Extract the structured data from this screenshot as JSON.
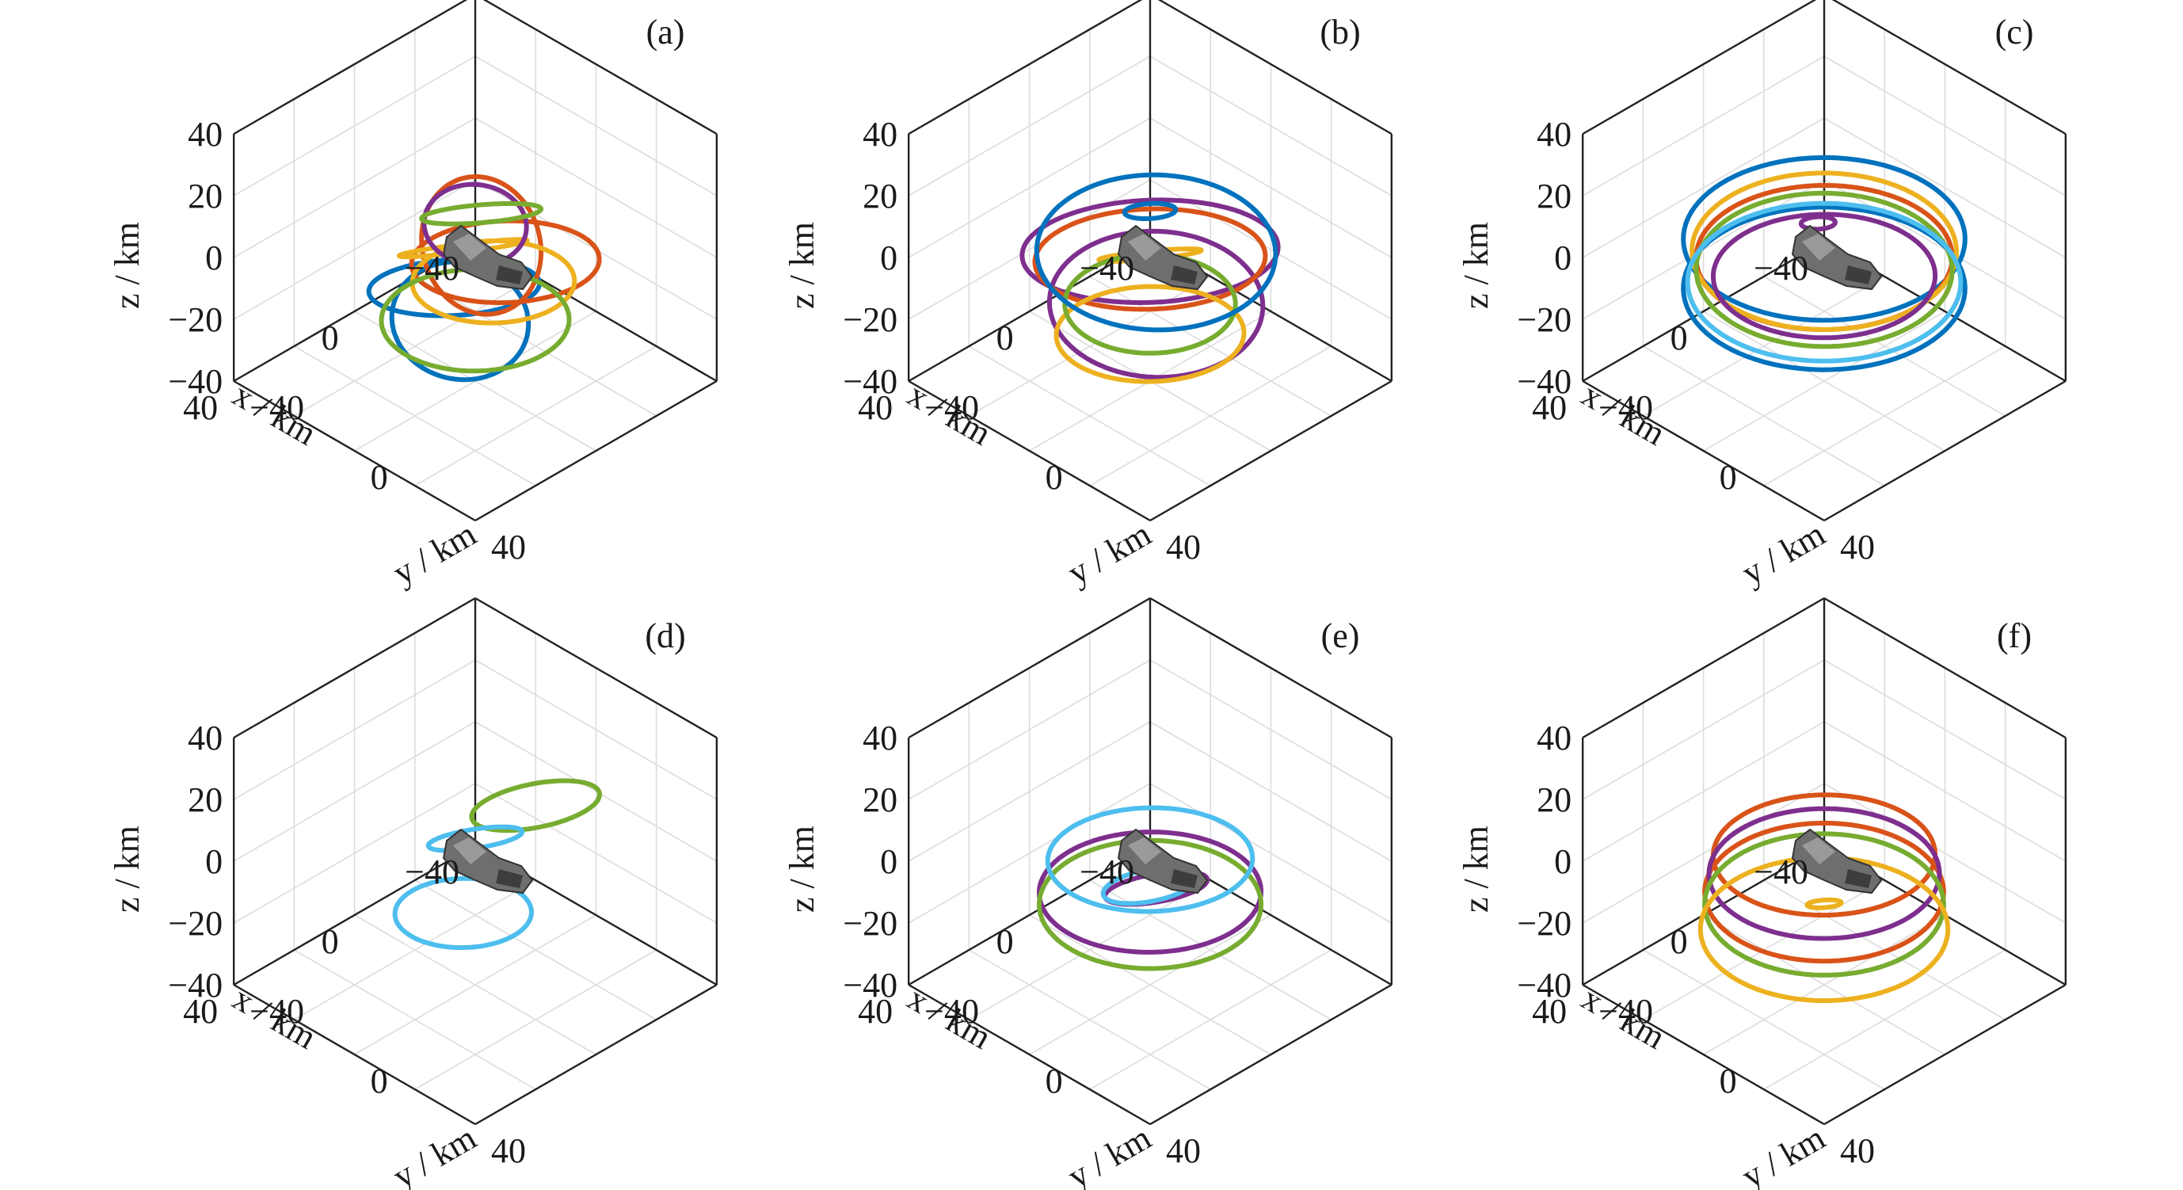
{
  "chart_data": [
    {
      "type": "line3d",
      "panel_label": "(a)",
      "xlabel": "x / km",
      "ylabel": "y / km",
      "zlabel": "z / km",
      "xlim": [
        -40,
        40
      ],
      "ylim": [
        -40,
        40
      ],
      "zlim": [
        -40,
        40
      ],
      "xticks": [
        "−40",
        "0",
        "40"
      ],
      "yticks": [
        "−40",
        "0",
        "40"
      ],
      "zticks": [
        "−40",
        "−20",
        "0",
        "20",
        "40"
      ],
      "grid": true,
      "view": "isometric",
      "has_asteroid_model": true,
      "series": [
        {
          "color": "#0072BD",
          "loops": [
            {
              "cx": 5,
              "cy": -2,
              "cz": -8,
              "r": 20,
              "tilt": 0.35
            },
            {
              "cx": 10,
              "cy": 5,
              "cz": -12,
              "r": 16,
              "tilt": -0.4
            }
          ]
        },
        {
          "color": "#D95319",
          "loops": [
            {
              "cx": -2,
              "cy": 8,
              "cz": 2,
              "r": 22,
              "tilt": 0.2
            },
            {
              "cx": -8,
              "cy": -6,
              "cz": -4,
              "r": 14,
              "tilt": -0.8
            }
          ]
        },
        {
          "color": "#EDB120",
          "loops": [
            {
              "cx": -6,
              "cy": -10,
              "cz": -6,
              "r": 15,
              "tilt": 0.9
            },
            {
              "cx": 4,
              "cy": 10,
              "cz": 0,
              "r": 19,
              "tilt": 0.1
            }
          ]
        },
        {
          "color": "#7E2F8E",
          "loops": [
            {
              "cx": -4,
              "cy": -4,
              "cz": 6,
              "r": 12,
              "tilt": -0.3
            }
          ]
        },
        {
          "color": "#77AC30",
          "loops": [
            {
              "cx": 2,
              "cy": 2,
              "cz": -18,
              "r": 22,
              "tilt": 0.05
            },
            {
              "cx": -10,
              "cy": -8,
              "cz": 4,
              "r": 14,
              "tilt": 0.6
            }
          ]
        }
      ]
    },
    {
      "type": "line3d",
      "panel_label": "(b)",
      "xlabel": "x / km",
      "ylabel": "y / km",
      "zlabel": "z / km",
      "xlim": [
        -40,
        40
      ],
      "ylim": [
        -40,
        40
      ],
      "zlim": [
        -40,
        40
      ],
      "xticks": [
        "−40",
        "0",
        "40"
      ],
      "yticks": [
        "−40",
        "0",
        "40"
      ],
      "zticks": [
        "−40",
        "−20",
        "0",
        "20",
        "40"
      ],
      "grid": true,
      "view": "isometric",
      "has_asteroid_model": true,
      "series": [
        {
          "color": "#7E2F8E",
          "loops": [
            {
              "cx": 0,
              "cy": 0,
              "cz": 2,
              "r": 30,
              "tilt": 0.25
            },
            {
              "cx": 0,
              "cy": 2,
              "cz": -14,
              "r": 25,
              "tilt": -0.15
            }
          ]
        },
        {
          "color": "#D95319",
          "loops": [
            {
              "cx": 4,
              "cy": 4,
              "cz": 4,
              "r": 27,
              "tilt": 0.2
            }
          ]
        },
        {
          "color": "#EDB120",
          "loops": [
            {
              "cx": 6,
              "cy": 6,
              "cz": -18,
              "r": 22,
              "tilt": 0.1
            },
            {
              "cx": -6,
              "cy": -6,
              "cz": -6,
              "r": 12,
              "tilt": 0.7
            }
          ]
        },
        {
          "color": "#77AC30",
          "loops": [
            {
              "cx": 8,
              "cy": 8,
              "cz": -6,
              "r": 20,
              "tilt": 0.0
            }
          ]
        },
        {
          "color": "#0072BD",
          "loops": [
            {
              "cx": -6,
              "cy": -4,
              "cz": -4,
              "r": 28,
              "tilt": -0.1
            },
            {
              "cx": -8,
              "cy": -8,
              "cz": 6,
              "r": 6,
              "tilt": 0.4
            }
          ]
        }
      ]
    },
    {
      "type": "line3d",
      "panel_label": "(c)",
      "xlabel": "x / km",
      "ylabel": "y / km",
      "zlabel": "z / km",
      "xlim": [
        -40,
        40
      ],
      "ylim": [
        -40,
        40
      ],
      "zlim": [
        -40,
        40
      ],
      "xticks": [
        "−40",
        "0",
        "40"
      ],
      "yticks": [
        "−40",
        "0",
        "40"
      ],
      "zticks": [
        "−40",
        "−20",
        "0",
        "20",
        "40"
      ],
      "grid": true,
      "view": "isometric",
      "has_asteroid_model": true,
      "series": [
        {
          "color": "#0072BD",
          "loops": [
            {
              "cx": 0,
              "cy": 0,
              "cz": 6,
              "r": 33,
              "tilt": 0.0
            },
            {
              "cx": 0,
              "cy": 0,
              "cz": -10,
              "r": 33,
              "tilt": 0.0
            }
          ]
        },
        {
          "color": "#D95319",
          "loops": [
            {
              "cx": 0,
              "cy": 0,
              "cz": 0,
              "r": 30,
              "tilt": 0.02
            }
          ]
        },
        {
          "color": "#EDB120",
          "loops": [
            {
              "cx": 0,
              "cy": 0,
              "cz": 2,
              "r": 31,
              "tilt": -0.02
            }
          ]
        },
        {
          "color": "#7E2F8E",
          "loops": [
            {
              "cx": 0,
              "cy": 0,
              "cz": -6,
              "r": 26,
              "tilt": 0.03
            },
            {
              "cx": -16,
              "cy": -18,
              "cz": -8,
              "r": 4,
              "tilt": 0.3
            }
          ]
        },
        {
          "color": "#77AC30",
          "loops": [
            {
              "cx": 0,
              "cy": 0,
              "cz": -4,
              "r": 30,
              "tilt": -0.03
            }
          ]
        },
        {
          "color": "#4DBEEE",
          "loops": [
            {
              "cx": 0,
              "cy": 0,
              "cz": -8,
              "r": 32,
              "tilt": 0.0
            }
          ]
        }
      ]
    },
    {
      "type": "line3d",
      "panel_label": "(d)",
      "xlabel": "x / km",
      "ylabel": "y / km",
      "zlabel": "z / km",
      "xlim": [
        -40,
        40
      ],
      "ylim": [
        -40,
        40
      ],
      "zlim": [
        -40,
        40
      ],
      "xticks": [
        "−40",
        "0",
        "40"
      ],
      "yticks": [
        "−40",
        "0",
        "40"
      ],
      "zticks": [
        "−40",
        "−20",
        "0",
        "20",
        "40"
      ],
      "grid": true,
      "view": "isometric",
      "has_asteroid_model": true,
      "series": [
        {
          "color": "#77AC30",
          "loops": [
            {
              "cx": -10,
              "cy": 10,
              "cz": 18,
              "r": 15,
              "tilt": 1.3
            }
          ]
        },
        {
          "color": "#4DBEEE",
          "loops": [
            {
              "cx": 8,
              "cy": 4,
              "cz": -10,
              "r": 16,
              "tilt": 0.1
            },
            {
              "cx": -10,
              "cy": -10,
              "cz": -4,
              "r": 11,
              "tilt": 1.1
            }
          ]
        }
      ]
    },
    {
      "type": "line3d",
      "panel_label": "(e)",
      "xlabel": "x / km",
      "ylabel": "y / km",
      "zlabel": "z / km",
      "xlim": [
        -40,
        40
      ],
      "ylim": [
        -40,
        40
      ],
      "zlim": [
        -40,
        40
      ],
      "xticks": [
        "−40",
        "0",
        "40"
      ],
      "yticks": [
        "−40",
        "0",
        "40"
      ],
      "zticks": [
        "−40",
        "−20",
        "0",
        "20",
        "40"
      ],
      "grid": true,
      "view": "isometric",
      "has_asteroid_model": true,
      "series": [
        {
          "color": "#7E2F8E",
          "loops": [
            {
              "cx": 0,
              "cy": 0,
              "cz": -10,
              "r": 26,
              "tilt": 0.05
            },
            {
              "cx": 12,
              "cy": 14,
              "cz": 6,
              "r": 12,
              "tilt": 1.2
            }
          ]
        },
        {
          "color": "#77AC30",
          "loops": [
            {
              "cx": 0,
              "cy": 0,
              "cz": -14,
              "r": 26,
              "tilt": 0.0
            }
          ]
        },
        {
          "color": "#4DBEEE",
          "loops": [
            {
              "cx": -4,
              "cy": -4,
              "cz": -4,
              "r": 24,
              "tilt": 0.1
            },
            {
              "cx": 14,
              "cy": 14,
              "cz": 8,
              "r": 11,
              "tilt": 1.3
            }
          ]
        }
      ]
    },
    {
      "type": "line3d",
      "panel_label": "(f)",
      "xlabel": "x / km",
      "ylabel": "y / km",
      "zlabel": "z / km",
      "xlim": [
        -40,
        40
      ],
      "ylim": [
        -40,
        40
      ],
      "zlim": [
        -40,
        40
      ],
      "xticks": [
        "−40",
        "0",
        "40"
      ],
      "yticks": [
        "−40",
        "0",
        "40"
      ],
      "zticks": [
        "−40",
        "−20",
        "0",
        "20",
        "40"
      ],
      "grid": true,
      "view": "isometric",
      "has_asteroid_model": true,
      "series": [
        {
          "color": "#D95319",
          "loops": [
            {
              "cx": 0,
              "cy": 0,
              "cz": 2,
              "r": 26,
              "tilt": 0.05
            },
            {
              "cx": 0,
              "cy": 0,
              "cz": -10,
              "r": 28,
              "tilt": 0.0
            }
          ]
        },
        {
          "color": "#7E2F8E",
          "loops": [
            {
              "cx": 0,
              "cy": 0,
              "cz": -4,
              "r": 27,
              "tilt": 0.02
            }
          ]
        },
        {
          "color": "#77AC30",
          "loops": [
            {
              "cx": 0,
              "cy": 0,
              "cz": -14,
              "r": 28,
              "tilt": -0.02
            }
          ]
        },
        {
          "color": "#EDB120",
          "loops": [
            {
              "cx": 0,
              "cy": 0,
              "cz": -22,
              "r": 29,
              "tilt": 0.0
            },
            {
              "cx": 14,
              "cy": 14,
              "cz": 2,
              "r": 4,
              "tilt": 0.5
            }
          ]
        }
      ]
    }
  ]
}
